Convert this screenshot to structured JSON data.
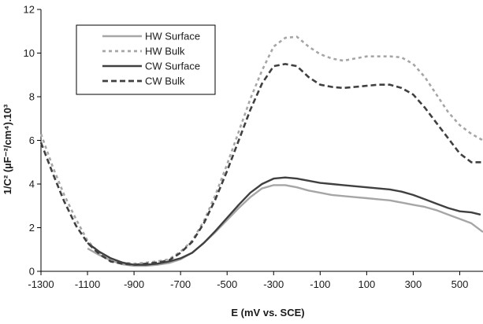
{
  "chart_data": {
    "type": "line",
    "title": "",
    "xlabel": "E (mV vs. SCE)",
    "ylabel": "1/C² (µF⁻²/cm⁴).10³",
    "xlim": [
      -1300,
      600
    ],
    "ylim": [
      0,
      12
    ],
    "xticks": [
      -1300,
      -1100,
      -900,
      -700,
      -500,
      -300,
      -100,
      100,
      300,
      500
    ],
    "yticks": [
      0,
      2,
      4,
      6,
      8,
      10,
      12
    ],
    "grid": false,
    "legend_position": "top-left",
    "series": [
      {
        "name": "HW Surface",
        "color": "#a6a6a6",
        "style": "solid",
        "x": [
          -1100,
          -1050,
          -1000,
          -950,
          -900,
          -850,
          -800,
          -750,
          -700,
          -650,
          -600,
          -550,
          -500,
          -450,
          -400,
          -350,
          -300,
          -250,
          -200,
          -150,
          -100,
          -50,
          0,
          50,
          100,
          150,
          200,
          250,
          300,
          350,
          400,
          450,
          500,
          550,
          600
        ],
        "y": [
          1.05,
          0.75,
          0.5,
          0.32,
          0.25,
          0.25,
          0.3,
          0.38,
          0.55,
          0.85,
          1.3,
          1.8,
          2.35,
          2.9,
          3.4,
          3.8,
          3.95,
          3.95,
          3.85,
          3.7,
          3.6,
          3.5,
          3.45,
          3.4,
          3.35,
          3.3,
          3.25,
          3.15,
          3.05,
          2.95,
          2.8,
          2.6,
          2.4,
          2.2,
          1.8
        ]
      },
      {
        "name": "HW Bulk",
        "color": "#a6a6a6",
        "style": "dotted",
        "x": [
          -1300,
          -1250,
          -1200,
          -1150,
          -1100,
          -1050,
          -1000,
          -950,
          -900,
          -850,
          -800,
          -750,
          -700,
          -650,
          -600,
          -550,
          -500,
          -450,
          -400,
          -350,
          -300,
          -250,
          -200,
          -150,
          -100,
          -50,
          0,
          50,
          100,
          150,
          200,
          250,
          300,
          350,
          400,
          450,
          500,
          550,
          600
        ],
        "y": [
          6.3,
          4.8,
          3.5,
          2.4,
          1.4,
          0.85,
          0.55,
          0.4,
          0.35,
          0.4,
          0.45,
          0.55,
          0.9,
          1.4,
          2.3,
          3.5,
          4.9,
          6.4,
          7.9,
          9.2,
          10.3,
          10.7,
          10.75,
          10.3,
          9.95,
          9.75,
          9.65,
          9.75,
          9.85,
          9.85,
          9.85,
          9.8,
          9.5,
          8.9,
          8.1,
          7.3,
          6.7,
          6.3,
          6.0
        ]
      },
      {
        "name": "CW Surface",
        "color": "#404040",
        "style": "solid",
        "x": [
          -1100,
          -1050,
          -1000,
          -950,
          -900,
          -850,
          -800,
          -750,
          -700,
          -650,
          -600,
          -550,
          -500,
          -450,
          -400,
          -350,
          -300,
          -250,
          -200,
          -150,
          -100,
          -50,
          0,
          50,
          100,
          150,
          200,
          250,
          300,
          350,
          400,
          450,
          500,
          550,
          590
        ],
        "y": [
          1.3,
          0.9,
          0.6,
          0.4,
          0.3,
          0.3,
          0.35,
          0.45,
          0.6,
          0.85,
          1.3,
          1.85,
          2.45,
          3.05,
          3.6,
          4.0,
          4.25,
          4.3,
          4.25,
          4.15,
          4.05,
          4.0,
          3.95,
          3.9,
          3.85,
          3.8,
          3.75,
          3.65,
          3.5,
          3.3,
          3.1,
          2.9,
          2.75,
          2.7,
          2.6
        ]
      },
      {
        "name": "CW Bulk",
        "color": "#404040",
        "style": "dashed",
        "x": [
          -1300,
          -1250,
          -1200,
          -1150,
          -1100,
          -1050,
          -1000,
          -950,
          -900,
          -850,
          -800,
          -750,
          -700,
          -650,
          -600,
          -550,
          -500,
          -450,
          -400,
          -350,
          -300,
          -250,
          -200,
          -150,
          -100,
          -50,
          0,
          50,
          100,
          150,
          200,
          250,
          300,
          350,
          400,
          450,
          500,
          550,
          600
        ],
        "y": [
          5.9,
          4.5,
          3.2,
          2.1,
          1.3,
          0.8,
          0.45,
          0.35,
          0.3,
          0.35,
          0.4,
          0.5,
          0.85,
          1.35,
          2.2,
          3.3,
          4.6,
          6.0,
          7.4,
          8.6,
          9.4,
          9.5,
          9.4,
          8.9,
          8.55,
          8.45,
          8.4,
          8.45,
          8.5,
          8.55,
          8.55,
          8.4,
          8.1,
          7.5,
          6.8,
          6.1,
          5.4,
          5.0,
          5.0
        ]
      }
    ]
  }
}
